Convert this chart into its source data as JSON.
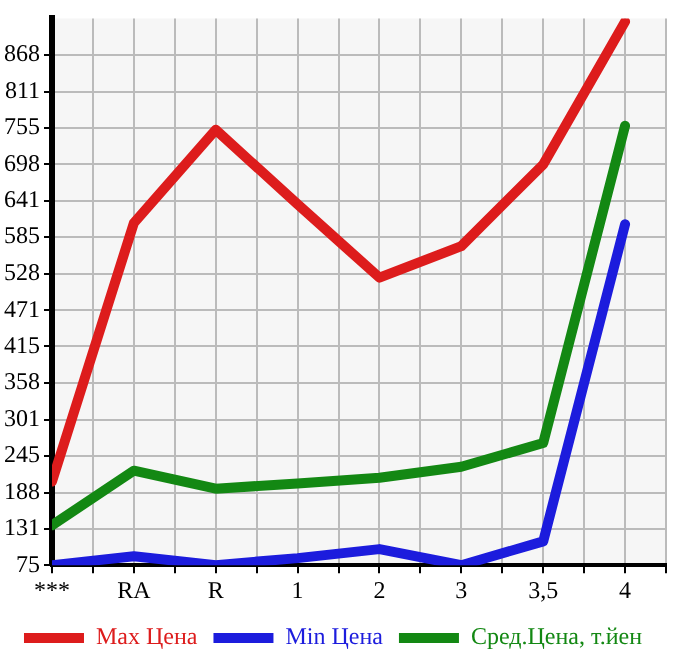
{
  "chart_data": {
    "type": "line",
    "categories": [
      "***",
      "RA",
      "R",
      "1",
      "2",
      "3",
      "3,5",
      "4"
    ],
    "series": [
      {
        "name": "Max Цена",
        "color": "#dd1c1c",
        "values": [
          205,
          607,
          752,
          636,
          522,
          571,
          698,
          920
        ]
      },
      {
        "name": "Min Цена",
        "color": "#1c1cdd",
        "values": [
          75,
          89,
          75,
          86,
          100,
          75,
          112,
          605
        ]
      },
      {
        "name": "Сред.Цена, т.йен",
        "color": "#138813",
        "values": [
          137,
          222,
          194,
          202,
          211,
          228,
          265,
          758
        ]
      }
    ],
    "ylim": [
      75,
      925
    ],
    "yticks": [
      75,
      131,
      188,
      245,
      301,
      358,
      415,
      471,
      528,
      585,
      641,
      698,
      755,
      811,
      868
    ],
    "grid": true,
    "legend": "bottom",
    "marker": "none",
    "line_style": "solid"
  }
}
